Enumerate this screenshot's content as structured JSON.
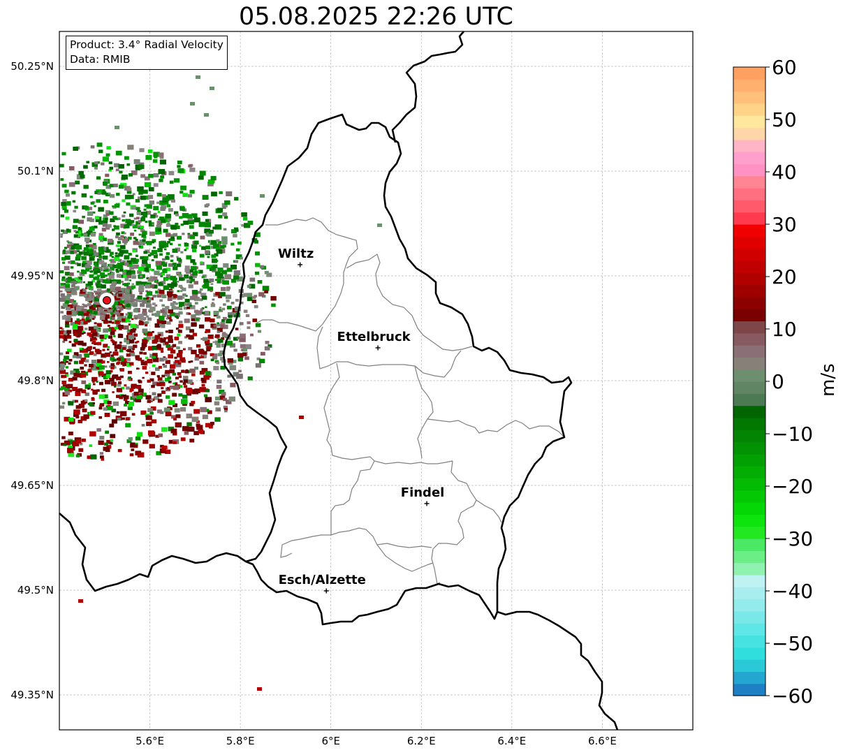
{
  "title": "05.08.2025 22:26 UTC",
  "info": {
    "product": "Product: 3.4° Radial Velocity",
    "data": "Data: RMIB"
  },
  "latitude_labels": [
    "50.25°N",
    "50.1°N",
    "49.95°N",
    "49.8°N",
    "49.65°N",
    "49.5°N",
    "49.35°N"
  ],
  "latitude_values": [
    50.25,
    50.1,
    49.95,
    49.8,
    49.65,
    49.5,
    49.35
  ],
  "longitude_labels": [
    "5.6°E",
    "5.8°E",
    "6°E",
    "6.2°E",
    "6.4°E",
    "6.6°E"
  ],
  "longitude_values": [
    5.6,
    5.8,
    6.0,
    6.2,
    6.4,
    6.6
  ],
  "map_extent": {
    "lon_min": 5.4,
    "lon_max": 6.8,
    "lat_min": 49.3,
    "lat_max": 50.3
  },
  "radar_site": {
    "lon": 5.505,
    "lat": 49.915,
    "color": "#e8101a"
  },
  "cities": [
    {
      "name": "Wiltz",
      "lon": 5.932,
      "lat": 49.966
    },
    {
      "name": "Ettelbruck",
      "lon": 6.104,
      "lat": 49.847
    },
    {
      "name": "Findel",
      "lon": 6.212,
      "lat": 49.624
    },
    {
      "name": "Esch/Alzette",
      "lon": 5.99,
      "lat": 49.499
    }
  ],
  "colorbar": {
    "unit": "m/s",
    "min": -60,
    "max": 60,
    "tick_values": [
      60,
      50,
      40,
      30,
      20,
      10,
      0,
      -10,
      -20,
      -30,
      -40,
      -50,
      -60
    ],
    "tick_labels": [
      "60",
      "50",
      "40",
      "30",
      "20",
      "10",
      "0",
      "−10",
      "−20",
      "−30",
      "−40",
      "−50",
      "−60"
    ],
    "colors_bottom_to_top": [
      "#1f7fc4",
      "#23a6cf",
      "#2bc8d8",
      "#30dede",
      "#46e2e2",
      "#5fe6e6",
      "#7ae8e8",
      "#93ebeb",
      "#a8eeee",
      "#bff2f2",
      "#8ff2b0",
      "#6cee86",
      "#4be866",
      "#22e822",
      "#0de40d",
      "#05d605",
      "#04c804",
      "#04bb04",
      "#03ad03",
      "#03a003",
      "#039203",
      "#038503",
      "#027702",
      "#016601",
      "#4c7a52",
      "#5f8565",
      "#6e8f6f",
      "#868079",
      "#8a6f76",
      "#875a62",
      "#7f4649",
      "#7a0000",
      "#8c0000",
      "#9e0000",
      "#b00000",
      "#c00000",
      "#d00000",
      "#e00000",
      "#f00000",
      "#ff3a4e",
      "#ff5a6b",
      "#ff6f80",
      "#ff8494",
      "#ff92c3",
      "#ffa0cc",
      "#ffb5c6",
      "#ffd6a8",
      "#ffe79e",
      "#ffd488",
      "#ffc07c",
      "#ffb06e",
      "#ffa060"
    ]
  }
}
